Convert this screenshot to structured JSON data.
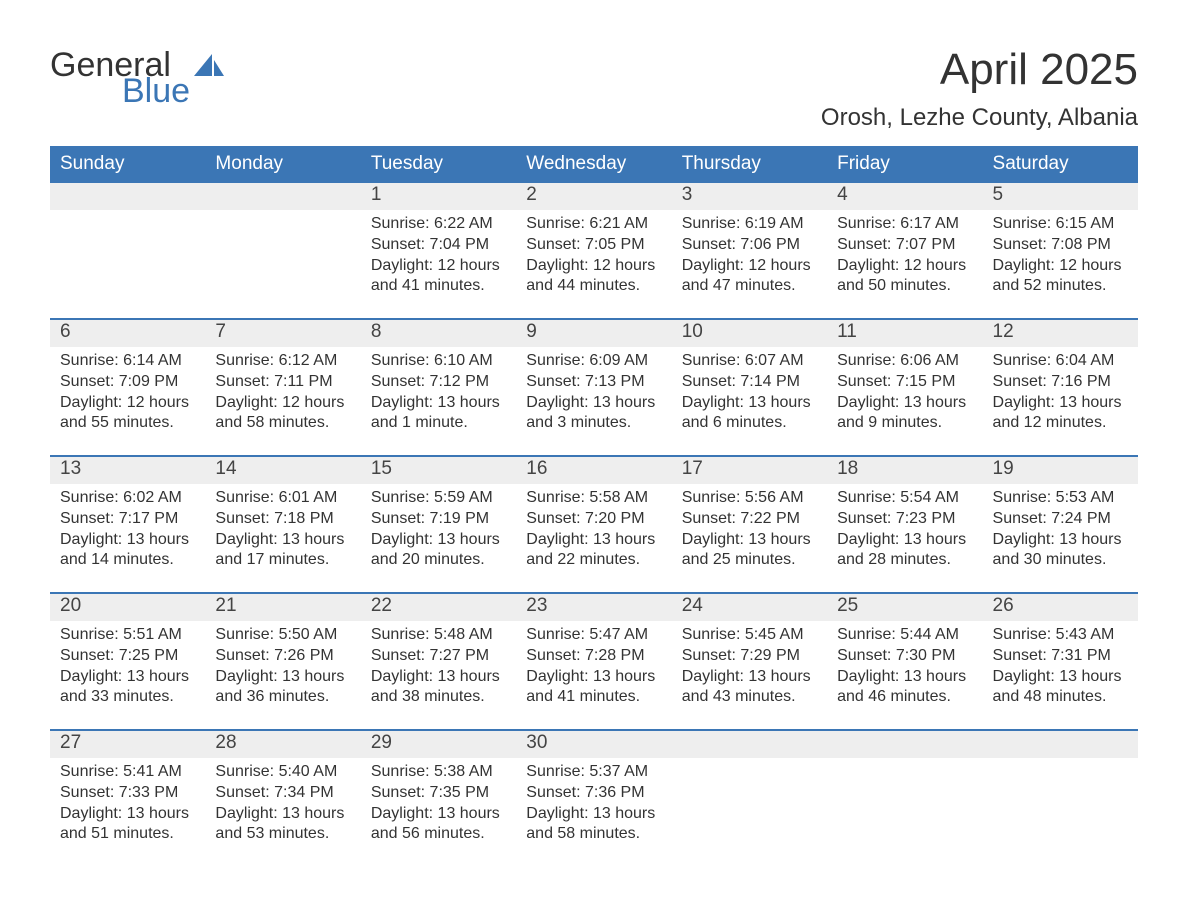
{
  "brand": {
    "top": "General",
    "bottom": "Blue",
    "sail_color": "#3b76b5"
  },
  "title": "April 2025",
  "location": "Orosh, Lezhe County, Albania",
  "header_bg": "#3b76b5",
  "daterow_bg": "#eeeeee",
  "week_border": "#3b76b5",
  "day_names": [
    "Sunday",
    "Monday",
    "Tuesday",
    "Wednesday",
    "Thursday",
    "Friday",
    "Saturday"
  ],
  "weeks": [
    [
      {
        "num": "",
        "sunrise": "",
        "sunset": "",
        "daylight": ""
      },
      {
        "num": "",
        "sunrise": "",
        "sunset": "",
        "daylight": ""
      },
      {
        "num": "1",
        "sunrise": "Sunrise: 6:22 AM",
        "sunset": "Sunset: 7:04 PM",
        "daylight": "Daylight: 12 hours and 41 minutes."
      },
      {
        "num": "2",
        "sunrise": "Sunrise: 6:21 AM",
        "sunset": "Sunset: 7:05 PM",
        "daylight": "Daylight: 12 hours and 44 minutes."
      },
      {
        "num": "3",
        "sunrise": "Sunrise: 6:19 AM",
        "sunset": "Sunset: 7:06 PM",
        "daylight": "Daylight: 12 hours and 47 minutes."
      },
      {
        "num": "4",
        "sunrise": "Sunrise: 6:17 AM",
        "sunset": "Sunset: 7:07 PM",
        "daylight": "Daylight: 12 hours and 50 minutes."
      },
      {
        "num": "5",
        "sunrise": "Sunrise: 6:15 AM",
        "sunset": "Sunset: 7:08 PM",
        "daylight": "Daylight: 12 hours and 52 minutes."
      }
    ],
    [
      {
        "num": "6",
        "sunrise": "Sunrise: 6:14 AM",
        "sunset": "Sunset: 7:09 PM",
        "daylight": "Daylight: 12 hours and 55 minutes."
      },
      {
        "num": "7",
        "sunrise": "Sunrise: 6:12 AM",
        "sunset": "Sunset: 7:11 PM",
        "daylight": "Daylight: 12 hours and 58 minutes."
      },
      {
        "num": "8",
        "sunrise": "Sunrise: 6:10 AM",
        "sunset": "Sunset: 7:12 PM",
        "daylight": "Daylight: 13 hours and 1 minute."
      },
      {
        "num": "9",
        "sunrise": "Sunrise: 6:09 AM",
        "sunset": "Sunset: 7:13 PM",
        "daylight": "Daylight: 13 hours and 3 minutes."
      },
      {
        "num": "10",
        "sunrise": "Sunrise: 6:07 AM",
        "sunset": "Sunset: 7:14 PM",
        "daylight": "Daylight: 13 hours and 6 minutes."
      },
      {
        "num": "11",
        "sunrise": "Sunrise: 6:06 AM",
        "sunset": "Sunset: 7:15 PM",
        "daylight": "Daylight: 13 hours and 9 minutes."
      },
      {
        "num": "12",
        "sunrise": "Sunrise: 6:04 AM",
        "sunset": "Sunset: 7:16 PM",
        "daylight": "Daylight: 13 hours and 12 minutes."
      }
    ],
    [
      {
        "num": "13",
        "sunrise": "Sunrise: 6:02 AM",
        "sunset": "Sunset: 7:17 PM",
        "daylight": "Daylight: 13 hours and 14 minutes."
      },
      {
        "num": "14",
        "sunrise": "Sunrise: 6:01 AM",
        "sunset": "Sunset: 7:18 PM",
        "daylight": "Daylight: 13 hours and 17 minutes."
      },
      {
        "num": "15",
        "sunrise": "Sunrise: 5:59 AM",
        "sunset": "Sunset: 7:19 PM",
        "daylight": "Daylight: 13 hours and 20 minutes."
      },
      {
        "num": "16",
        "sunrise": "Sunrise: 5:58 AM",
        "sunset": "Sunset: 7:20 PM",
        "daylight": "Daylight: 13 hours and 22 minutes."
      },
      {
        "num": "17",
        "sunrise": "Sunrise: 5:56 AM",
        "sunset": "Sunset: 7:22 PM",
        "daylight": "Daylight: 13 hours and 25 minutes."
      },
      {
        "num": "18",
        "sunrise": "Sunrise: 5:54 AM",
        "sunset": "Sunset: 7:23 PM",
        "daylight": "Daylight: 13 hours and 28 minutes."
      },
      {
        "num": "19",
        "sunrise": "Sunrise: 5:53 AM",
        "sunset": "Sunset: 7:24 PM",
        "daylight": "Daylight: 13 hours and 30 minutes."
      }
    ],
    [
      {
        "num": "20",
        "sunrise": "Sunrise: 5:51 AM",
        "sunset": "Sunset: 7:25 PM",
        "daylight": "Daylight: 13 hours and 33 minutes."
      },
      {
        "num": "21",
        "sunrise": "Sunrise: 5:50 AM",
        "sunset": "Sunset: 7:26 PM",
        "daylight": "Daylight: 13 hours and 36 minutes."
      },
      {
        "num": "22",
        "sunrise": "Sunrise: 5:48 AM",
        "sunset": "Sunset: 7:27 PM",
        "daylight": "Daylight: 13 hours and 38 minutes."
      },
      {
        "num": "23",
        "sunrise": "Sunrise: 5:47 AM",
        "sunset": "Sunset: 7:28 PM",
        "daylight": "Daylight: 13 hours and 41 minutes."
      },
      {
        "num": "24",
        "sunrise": "Sunrise: 5:45 AM",
        "sunset": "Sunset: 7:29 PM",
        "daylight": "Daylight: 13 hours and 43 minutes."
      },
      {
        "num": "25",
        "sunrise": "Sunrise: 5:44 AM",
        "sunset": "Sunset: 7:30 PM",
        "daylight": "Daylight: 13 hours and 46 minutes."
      },
      {
        "num": "26",
        "sunrise": "Sunrise: 5:43 AM",
        "sunset": "Sunset: 7:31 PM",
        "daylight": "Daylight: 13 hours and 48 minutes."
      }
    ],
    [
      {
        "num": "27",
        "sunrise": "Sunrise: 5:41 AM",
        "sunset": "Sunset: 7:33 PM",
        "daylight": "Daylight: 13 hours and 51 minutes."
      },
      {
        "num": "28",
        "sunrise": "Sunrise: 5:40 AM",
        "sunset": "Sunset: 7:34 PM",
        "daylight": "Daylight: 13 hours and 53 minutes."
      },
      {
        "num": "29",
        "sunrise": "Sunrise: 5:38 AM",
        "sunset": "Sunset: 7:35 PM",
        "daylight": "Daylight: 13 hours and 56 minutes."
      },
      {
        "num": "30",
        "sunrise": "Sunrise: 5:37 AM",
        "sunset": "Sunset: 7:36 PM",
        "daylight": "Daylight: 13 hours and 58 minutes."
      },
      {
        "num": "",
        "sunrise": "",
        "sunset": "",
        "daylight": ""
      },
      {
        "num": "",
        "sunrise": "",
        "sunset": "",
        "daylight": ""
      },
      {
        "num": "",
        "sunrise": "",
        "sunset": "",
        "daylight": ""
      }
    ]
  ]
}
